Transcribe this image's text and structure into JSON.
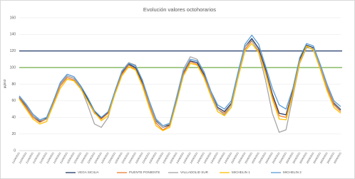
{
  "chart_data": {
    "type": "line",
    "title": "Evolución valores octohorarios",
    "y_label": "µg/m3",
    "categories": [
      "21/06/2021",
      "21/06/2021",
      "21/06/2021",
      "21/06/2021",
      "21/06/2021",
      "21/06/2021",
      "21/06/2021",
      "21/06/2021",
      "22/06/2021",
      "22/06/2021",
      "22/06/2021",
      "22/06/2021",
      "22/06/2021",
      "22/06/2021",
      "22/06/2021",
      "22/06/2021",
      "23/06/2021",
      "23/06/2021",
      "23/06/2021",
      "23/06/2021",
      "23/06/2021",
      "23/06/2021",
      "23/06/2021",
      "23/06/2021",
      "24/06/2021",
      "24/06/2021",
      "24/06/2021",
      "24/06/2021",
      "24/06/2021",
      "24/06/2021",
      "24/06/2021",
      "24/06/2021",
      "25/06/2021",
      "25/06/2021",
      "25/06/2021",
      "25/06/2021",
      "25/06/2021",
      "25/06/2021",
      "25/06/2021",
      "25/06/2021",
      "26/06/2021",
      "26/06/2021",
      "26/06/2021",
      "26/06/2021",
      "26/06/2021",
      "26/06/2021",
      "26/06/2021",
      "26/06/2021"
    ],
    "series": [
      {
        "name": "VEGA SICILIA",
        "color": "#1f3864",
        "values": [
          64,
          54,
          42,
          35,
          39,
          59,
          80,
          90,
          87,
          77,
          62,
          47,
          39,
          46,
          71,
          93,
          104,
          100,
          82,
          57,
          36,
          28,
          31,
          61,
          93,
          108,
          106,
          92,
          70,
          52,
          47,
          57,
          92,
          125,
          135,
          123,
          98,
          68,
          45,
          43,
          72,
          110,
          127,
          124,
          102,
          77,
          57,
          49
        ]
      },
      {
        "name": "PUENTE PONIENTE",
        "color": "#ed7d31",
        "values": [
          63,
          52,
          40,
          34,
          38,
          58,
          78,
          88,
          85,
          75,
          60,
          45,
          38,
          45,
          70,
          92,
          103,
          98,
          80,
          55,
          33,
          25,
          30,
          60,
          92,
          107,
          104,
          90,
          68,
          50,
          45,
          55,
          90,
          122,
          132,
          120,
          95,
          65,
          42,
          40,
          70,
          108,
          125,
          122,
          100,
          75,
          55,
          47
        ]
      },
      {
        "name": "VALLADOLID SUR",
        "color": "#a5a5a5",
        "values": [
          65,
          55,
          42,
          36,
          38,
          60,
          80,
          90,
          87,
          76,
          55,
          32,
          28,
          40,
          72,
          96,
          106,
          103,
          85,
          58,
          35,
          28,
          33,
          65,
          98,
          113,
          110,
          95,
          70,
          50,
          43,
          55,
          92,
          125,
          133,
          118,
          85,
          45,
          22,
          25,
          65,
          105,
          124,
          123,
          102,
          78,
          58,
          50
        ]
      },
      {
        "name": "MICHELIN 1",
        "color": "#ffc000",
        "values": [
          62,
          50,
          38,
          32,
          35,
          55,
          75,
          86,
          84,
          74,
          60,
          46,
          36,
          42,
          68,
          90,
          101,
          97,
          78,
          52,
          30,
          24,
          28,
          58,
          90,
          105,
          103,
          88,
          66,
          47,
          42,
          52,
          88,
          120,
          129,
          118,
          93,
          62,
          38,
          37,
          68,
          106,
          126,
          121,
          98,
          72,
          52,
          45
        ]
      },
      {
        "name": "MICHELIN 2",
        "color": "#5b9bd5",
        "values": [
          66,
          56,
          44,
          37,
          40,
          60,
          82,
          92,
          89,
          78,
          64,
          48,
          40,
          47,
          72,
          95,
          105,
          102,
          85,
          60,
          38,
          30,
          33,
          62,
          95,
          110,
          108,
          95,
          72,
          55,
          50,
          60,
          95,
          128,
          139,
          128,
          102,
          75,
          55,
          50,
          75,
          112,
          129,
          126,
          104,
          80,
          60,
          53
        ]
      }
    ],
    "reference_lines": [
      {
        "value": 120,
        "color": "#1f3864"
      },
      {
        "value": 100,
        "color": "#70ad47"
      }
    ],
    "ylim": [
      0,
      160
    ],
    "yticks": [
      0,
      20,
      40,
      60,
      80,
      100,
      120,
      140,
      160
    ],
    "grid": true
  }
}
